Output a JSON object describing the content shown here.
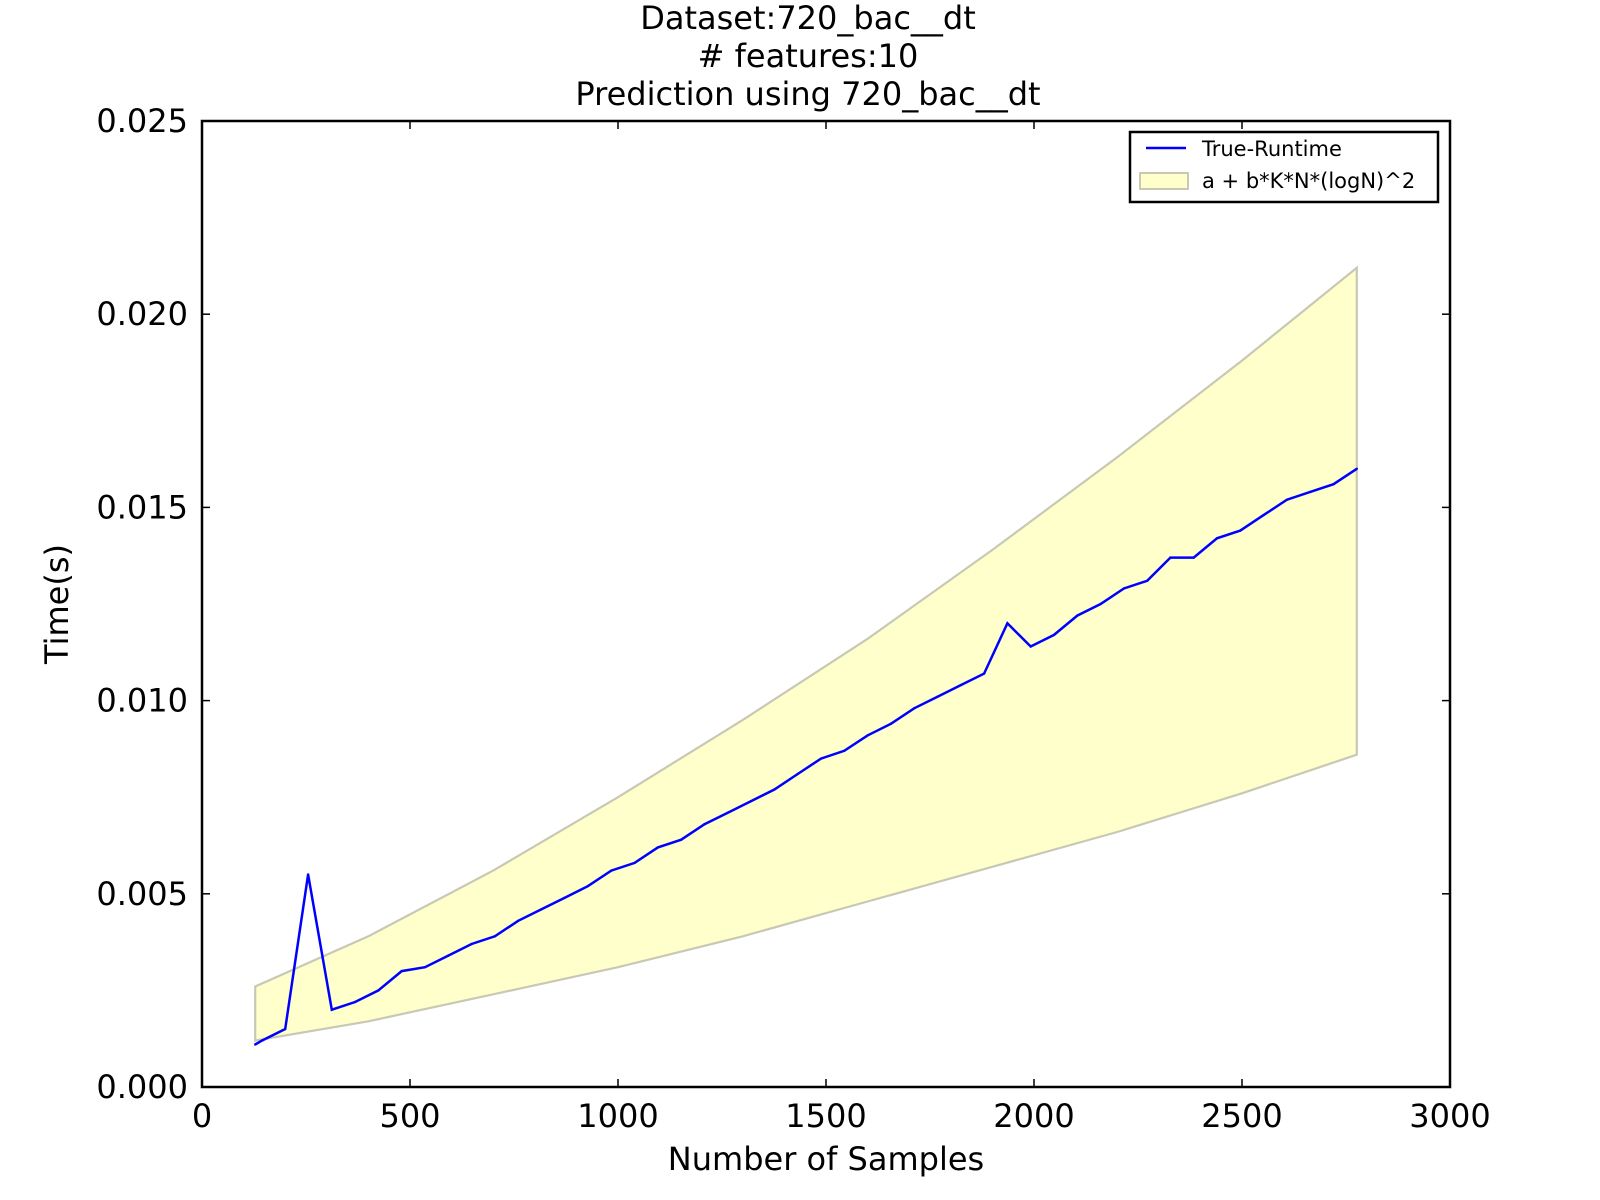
{
  "chart_data": {
    "type": "line",
    "title_lines": [
      "Dataset:720_bac__dt",
      "# features:10",
      "Prediction using 720_bac__dt"
    ],
    "xlabel": "Number of Samples",
    "ylabel": "Time(s)",
    "xlim": [
      0,
      3000
    ],
    "ylim": [
      0,
      0.025
    ],
    "xticks": [
      0,
      500,
      1000,
      1500,
      2000,
      2500,
      3000
    ],
    "xtick_labels": [
      "0",
      "500",
      "1000",
      "1500",
      "2000",
      "2500",
      "3000"
    ],
    "yticks": [
      0,
      0.005,
      0.01,
      0.015,
      0.02,
      0.025
    ],
    "ytick_labels": [
      "0.000",
      "0.005",
      "0.010",
      "0.015",
      "0.020",
      "0.025"
    ],
    "grid": false,
    "legend_position": "top-right",
    "series": [
      {
        "name": "True-Runtime",
        "color": "#0000ff",
        "x": [
          128,
          144,
          200,
          255,
          312,
          368,
          424,
          480,
          536,
          592,
          648,
          704,
          760,
          816,
          872,
          928,
          984,
          1040,
          1096,
          1152,
          1208,
          1264,
          1320,
          1376,
          1432,
          1488,
          1544,
          1600,
          1656,
          1712,
          1768,
          1824,
          1880,
          1936,
          1992,
          2048,
          2104,
          2160,
          2216,
          2272,
          2328,
          2384,
          2440,
          2496,
          2552,
          2608,
          2664,
          2720,
          2776
        ],
        "values": [
          0.0011,
          0.0012,
          0.0015,
          0.0055,
          0.002,
          0.0022,
          0.0025,
          0.003,
          0.0031,
          0.0034,
          0.0037,
          0.0039,
          0.0043,
          0.0046,
          0.0049,
          0.0052,
          0.0056,
          0.0058,
          0.0062,
          0.0064,
          0.0068,
          0.0071,
          0.0074,
          0.0077,
          0.0081,
          0.0085,
          0.0087,
          0.0091,
          0.0094,
          0.0098,
          0.0101,
          0.0104,
          0.0107,
          0.012,
          0.0114,
          0.0117,
          0.0122,
          0.0125,
          0.0129,
          0.0131,
          0.0137,
          0.0137,
          0.0142,
          0.0144,
          0.0148,
          0.0152,
          0.0154,
          0.0156,
          0.016
        ]
      }
    ],
    "band": {
      "name": "a + b*K*N*(logN)^2",
      "fill_color": "#ffffcc",
      "edge_color": "#c8c8b4",
      "x": [
        128,
        400,
        700,
        1000,
        1300,
        1600,
        1900,
        2200,
        2500,
        2776
      ],
      "lower": [
        0.0012,
        0.0017,
        0.0024,
        0.0031,
        0.0039,
        0.0048,
        0.0057,
        0.0066,
        0.0076,
        0.0086
      ],
      "upper": [
        0.0026,
        0.0039,
        0.0056,
        0.0075,
        0.0095,
        0.0116,
        0.0139,
        0.0163,
        0.0188,
        0.0212
      ]
    }
  }
}
